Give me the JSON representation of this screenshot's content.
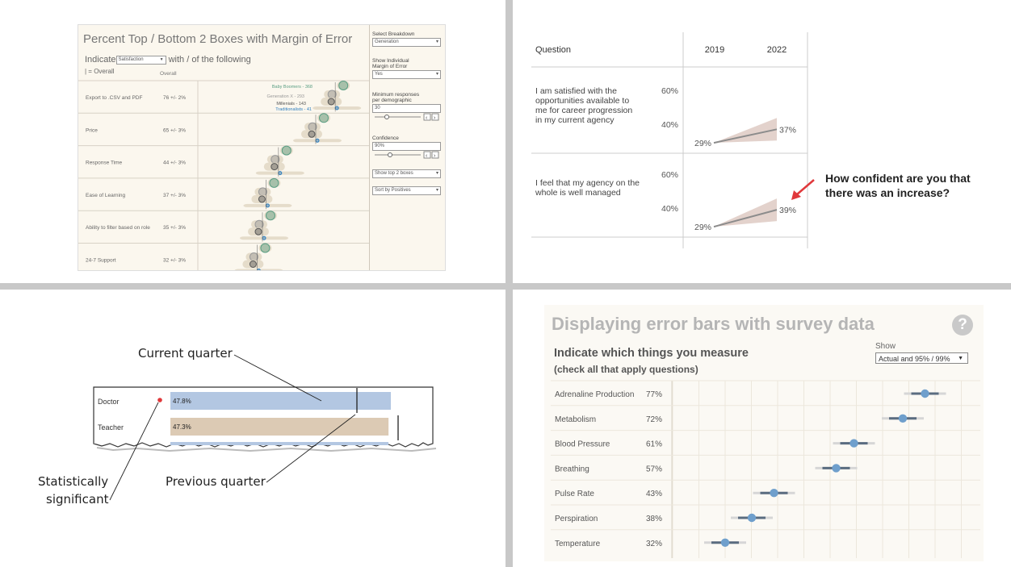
{
  "q1": {
    "title": "Percent Top / Bottom 2 Boxes with Margin of Error",
    "indicate_prefix": "Indicate",
    "indicate_select": "Satisfaction",
    "indicate_suffix": "with / of the following",
    "overall_legend": "| = Overall",
    "overall_header": "Overall",
    "controls": {
      "breakdown_label": "Select Breakdown",
      "breakdown_value": "Generation",
      "moe_label_1": "Show Individual",
      "moe_label_2": "Margin of Error",
      "moe_value": "Yes",
      "min_label_1": "Minimum responses",
      "min_label_2": "per demographic",
      "min_value": "30",
      "confidence_label": "Confidence",
      "confidence_value": "90%",
      "boxes_value": "Show top 2 boxes",
      "sort_value": "Sort by Positives"
    },
    "colors": {
      "baby_boomers": "#5a9e83",
      "generation_x": "#999999",
      "millenials": "#555555",
      "traditionalists": "#2f7fbf"
    }
  },
  "q2": {
    "col_question": "Question",
    "years": [
      "2019",
      "2022"
    ],
    "annotation": [
      "How confident are you that",
      "there was an increase?"
    ],
    "arrow_color": "#e0383b",
    "band_color": "#e3d2cc",
    "line_color": "#8c8c8c"
  },
  "q3": {
    "annotations": {
      "current": "Current quarter",
      "previous": "Previous quarter",
      "sig_1": "Statistically",
      "sig_2": "significant"
    },
    "colors": {
      "doctor_bar": "#b3c7e2",
      "teacher_bar": "#dccab4",
      "dot": "#e0383b"
    }
  },
  "q4": {
    "title": "Displaying error bars with survey data",
    "help_icon": "?",
    "subtitle": "Indicate which things you measure",
    "subtitle2": "(check all that apply questions)",
    "show_label": "Show",
    "show_value": "Actual and 95% / 99%",
    "colors": {
      "point": "#6f9fcc",
      "ci_inner": "#5a6c80",
      "ci_outer": "#d6d6d6"
    }
  },
  "chart_data": [
    {
      "type": "scatter",
      "title": "Percent Top / Bottom 2 Boxes with Margin of Error",
      "legend": [
        "Baby Boomers - 368",
        "Generation X - 293",
        "Millenials - 143",
        "Traditionalists - 41"
      ],
      "rows": [
        {
          "label": "Export to .CSV and PDF",
          "overall": "76 +/- 2%",
          "v": 76,
          "moe": 2
        },
        {
          "label": "Price",
          "overall": "65 +/- 3%",
          "v": 65,
          "moe": 3
        },
        {
          "label": "Response Time",
          "overall": "44 +/- 3%",
          "v": 44,
          "moe": 3
        },
        {
          "label": "Ease of Learning",
          "overall": "37 +/- 3%",
          "v": 37,
          "moe": 3
        },
        {
          "label": "Ability to filter based on role",
          "overall": "35 +/- 3%",
          "v": 35,
          "moe": 3
        },
        {
          "label": "24-7 Support",
          "overall": "32 +/- 3%",
          "v": 32,
          "moe": 3
        }
      ]
    },
    {
      "type": "line",
      "x": [
        "2019",
        "2022"
      ],
      "yticks": [
        "60%",
        "40%"
      ],
      "rows": [
        {
          "question": [
            "I am satisfied with the",
            "opportunities available to",
            "me for career progression",
            "in my current agency"
          ],
          "start": 29,
          "end": 37,
          "start_label": "29%",
          "end_label": "37%"
        },
        {
          "question": [
            "I feel that my agency on the",
            "whole is well managed"
          ],
          "start": 29,
          "end": 39,
          "start_label": "29%",
          "end_label": "39%"
        }
      ]
    },
    {
      "type": "bar",
      "categories": [
        "Doctor",
        "Teacher"
      ],
      "values": [
        47.8,
        47.3
      ],
      "labels": [
        "47.8%",
        "47.3%"
      ],
      "significant": [
        true,
        false
      ]
    },
    {
      "type": "scatter",
      "title": "Displaying error bars with survey data",
      "categories": [
        "Adrenaline Production",
        "Metabolism",
        "Blood Pressure",
        "Breathing",
        "Pulse Rate",
        "Perspiration",
        "Temperature"
      ],
      "values": [
        77,
        72,
        61,
        57,
        43,
        38,
        32
      ],
      "labels": [
        "77%",
        "72%",
        "61%",
        "57%",
        "43%",
        "38%",
        "32%"
      ]
    }
  ]
}
